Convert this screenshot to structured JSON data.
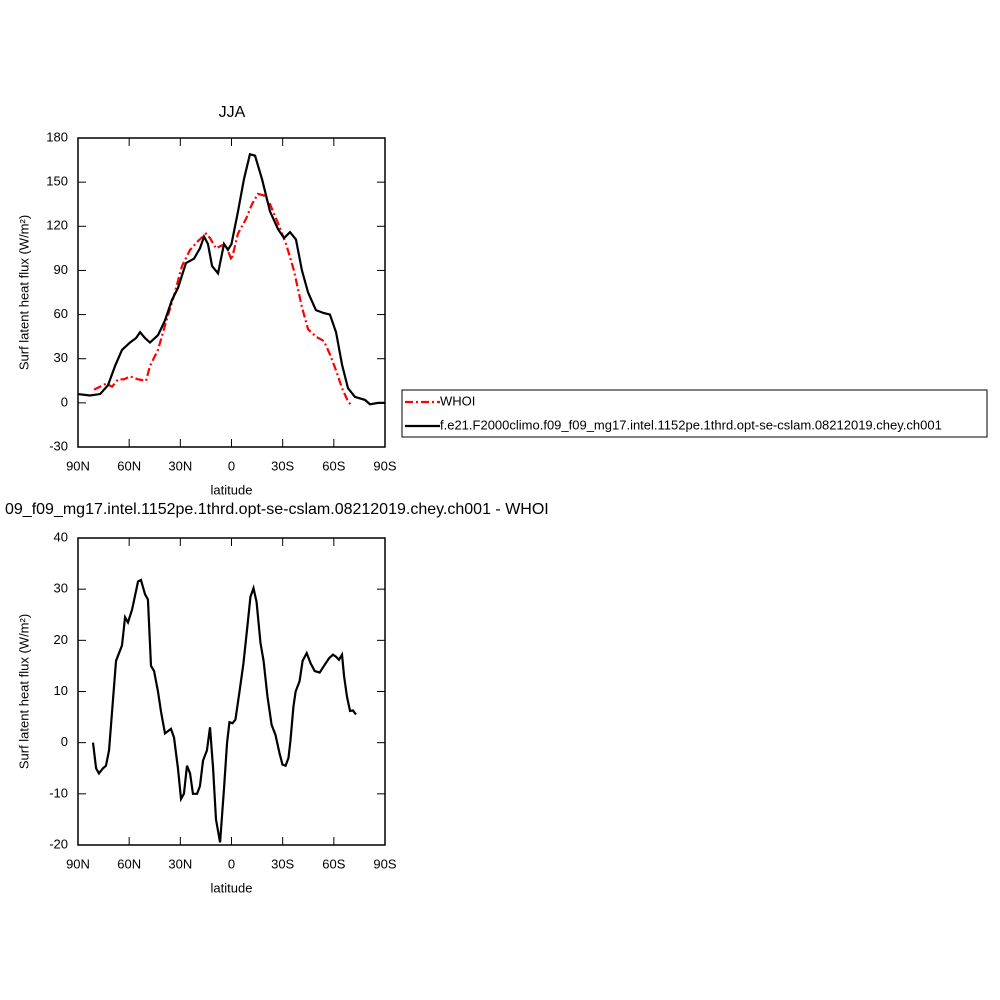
{
  "chart_data": [
    {
      "type": "line",
      "title": "JJA",
      "x_label": "latitude",
      "y_label": "Surf latent heat flux (W/m²)",
      "xlim": [
        90,
        -90
      ],
      "xticks": [
        {
          "value": 90,
          "label": "90N"
        },
        {
          "value": 60,
          "label": "60N"
        },
        {
          "value": 30,
          "label": "30N"
        },
        0,
        {
          "value": -30,
          "label": "30S"
        },
        {
          "value": -60,
          "label": "60S"
        },
        {
          "value": -90,
          "label": "90S"
        }
      ],
      "ylim": [
        -30,
        180
      ],
      "yticks": [
        -30,
        0,
        30,
        60,
        90,
        120,
        150,
        180
      ],
      "grid": false,
      "series": [
        {
          "name": "WHOI",
          "color": "#ff0000",
          "style": "dashed",
          "x": [
            80.6,
            77,
            73.6,
            70,
            66.5,
            63,
            59.5,
            54.8,
            50.1,
            47.8,
            43.1,
            38.4,
            33.7,
            29,
            24.3,
            19.6,
            14.9,
            12.6,
            9.1,
            5.6,
            3.2,
            0,
            -3.8,
            -8.5,
            -12,
            -15.5,
            -19,
            -22.6,
            -27.3,
            -32,
            -36.6,
            -41.3,
            -44.9,
            -49.5,
            -54.2,
            -57.7,
            -61.3,
            -64.8,
            -68.3,
            -70.6
          ],
          "values": [
            9,
            11,
            13,
            11,
            16,
            16,
            18,
            16,
            15,
            25,
            36,
            55,
            73,
            93,
            104,
            110,
            115,
            112,
            105,
            107,
            107,
            97,
            115,
            125,
            135,
            142,
            141,
            135,
            122,
            108,
            90,
            65,
            50,
            45,
            42,
            33,
            22,
            10,
            1,
            -2
          ]
        },
        {
          "name": "f.e21.F2000climo.f09_f09_mg17.intel.1152pe.1thrd.opt-se-cslam.08212019.chey.ch001",
          "color": "#000000",
          "style": "solid",
          "x": [
            90,
            83,
            77,
            72.4,
            68.3,
            64.2,
            59.5,
            56,
            53.6,
            50.7,
            47.8,
            43.1,
            39,
            34.9,
            31.4,
            26.7,
            22,
            18.5,
            16.1,
            13.8,
            11.4,
            7.9,
            4.4,
            2.1,
            0,
            -3.8,
            -7.3,
            -10.8,
            -13.8,
            -17.9,
            -22.6,
            -27.3,
            -30.8,
            -34.3,
            -37.8,
            -41.3,
            -44.9,
            -49.5,
            -54.2,
            -57.7,
            -61.3,
            -64.8,
            -68.3,
            -72.4,
            -78.3,
            -81.2,
            -85.9,
            -90
          ],
          "values": [
            6,
            5,
            6,
            12,
            25,
            36,
            41,
            44,
            48,
            44,
            41,
            46,
            56,
            70,
            78,
            95,
            98,
            105,
            113,
            108,
            93,
            88,
            108,
            104,
            108,
            130,
            152,
            169,
            168,
            152,
            130,
            118,
            112,
            116,
            111,
            90,
            75,
            63,
            61,
            60,
            48,
            26,
            10,
            4,
            2,
            -1,
            0,
            0
          ]
        }
      ]
    },
    {
      "type": "line",
      "title": "09_f09_mg17.intel.1152pe.1thrd.opt-se-cslam.08212019.chey.ch001 - WHOI",
      "x_label": "latitude",
      "y_label": "Surf latent heat flux (W/m²)",
      "xlim": [
        90,
        -90
      ],
      "xticks": [
        {
          "value": 90,
          "label": "90N"
        },
        {
          "value": 60,
          "label": "60N"
        },
        {
          "value": 30,
          "label": "30N"
        },
        0,
        {
          "value": -30,
          "label": "30S"
        },
        {
          "value": -60,
          "label": "60S"
        },
        {
          "value": -90,
          "label": "90S"
        }
      ],
      "ylim": [
        -20,
        40
      ],
      "yticks": [
        -20,
        -10,
        0,
        10,
        20,
        30,
        40
      ],
      "grid": false,
      "series": [
        {
          "color": "#000000",
          "style": "solid",
          "x": [
            81.2,
            79.4,
            77.7,
            75.3,
            73.6,
            71.8,
            67.7,
            64.2,
            62.4,
            60.7,
            58.3,
            54.8,
            53.1,
            50.7,
            49,
            47.2,
            45.4,
            43.1,
            41.3,
            39,
            35.5,
            33.7,
            31.4,
            29.6,
            27.9,
            26.1,
            24.3,
            22.6,
            20.2,
            18.5,
            16.7,
            14.4,
            12.6,
            10.8,
            9.1,
            6.7,
            4.4,
            2.6,
            1.2,
            -0.6,
            -2.3,
            -4.7,
            -7,
            -9.4,
            -11.1,
            -12.9,
            -14.7,
            -17,
            -18.8,
            -21.1,
            -23.5,
            -25.8,
            -28.1,
            -29.9,
            -31.7,
            -33.4,
            -34.6,
            -36.3,
            -37.6,
            -39.9,
            -41.7,
            -44.1,
            -46.4,
            -48.8,
            -51.7,
            -54.2,
            -57.2,
            -59.5,
            -61.3,
            -63,
            -64.8,
            -66,
            -67.7,
            -69.5,
            -71.2,
            -73
          ],
          "values": [
            0,
            -5,
            -6,
            -5,
            -4.5,
            -1.5,
            16,
            19,
            24.5,
            23.5,
            26,
            31.5,
            31.8,
            29,
            28,
            15,
            14,
            10,
            6,
            1.8,
            2.7,
            1,
            -5,
            -11,
            -10,
            -4.5,
            -6,
            -10,
            -10,
            -8.5,
            -3.5,
            -1.5,
            3,
            -5,
            -15,
            -19.5,
            -9,
            0,
            4,
            3.8,
            4.5,
            10,
            15.5,
            23,
            28.5,
            30.2,
            27.5,
            19.5,
            16,
            9,
            3.5,
            1.5,
            -2,
            -4.3,
            -4.5,
            -3,
            0.5,
            7,
            10,
            12,
            16,
            17.5,
            15.5,
            14,
            13.7,
            15,
            16.5,
            17.2,
            16.8,
            16.2,
            17.2,
            13,
            9,
            6.2,
            6.3,
            5.5
          ]
        }
      ]
    }
  ]
}
